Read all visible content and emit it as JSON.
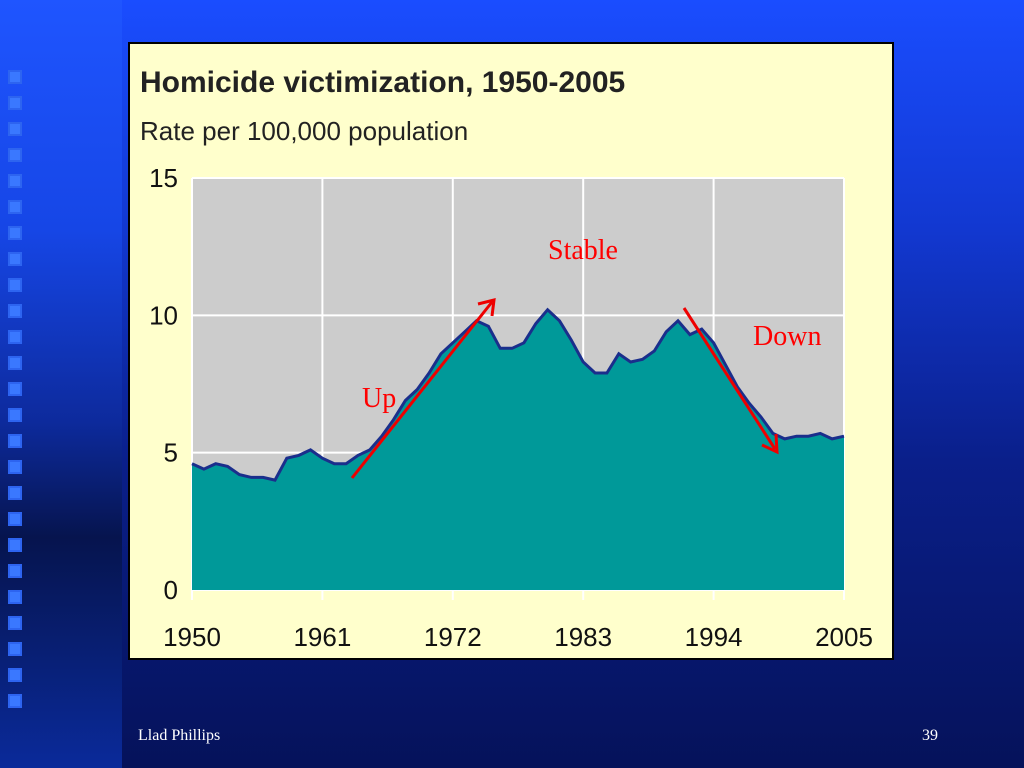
{
  "slide": {
    "author": "Llad Phillips",
    "page_number": "39",
    "background_color": "#1238d0"
  },
  "chart_data": {
    "type": "area",
    "title": "Homicide victimization, 1950-2005",
    "subtitle": "Rate per 100,000 population",
    "x_ticks": [
      "1950",
      "1961",
      "1972",
      "1983",
      "1994",
      "2005"
    ],
    "y_ticks": [
      "0",
      "5",
      "10",
      "15"
    ],
    "xlim": [
      1950,
      2005
    ],
    "ylim": [
      0,
      15
    ],
    "grid": true,
    "fill_color": "#009999",
    "line_color": "#1a2e8c",
    "plot_background": "#cccccc",
    "x": [
      1950,
      1951,
      1952,
      1953,
      1954,
      1955,
      1956,
      1957,
      1958,
      1959,
      1960,
      1961,
      1962,
      1963,
      1964,
      1965,
      1966,
      1967,
      1968,
      1969,
      1970,
      1971,
      1972,
      1973,
      1974,
      1975,
      1976,
      1977,
      1978,
      1979,
      1980,
      1981,
      1982,
      1983,
      1984,
      1985,
      1986,
      1987,
      1988,
      1989,
      1990,
      1991,
      1992,
      1993,
      1994,
      1995,
      1996,
      1997,
      1998,
      1999,
      2000,
      2001,
      2002,
      2003,
      2004,
      2005
    ],
    "values": [
      4.6,
      4.4,
      4.6,
      4.5,
      4.2,
      4.1,
      4.1,
      4.0,
      4.8,
      4.9,
      5.1,
      4.8,
      4.6,
      4.6,
      4.9,
      5.1,
      5.6,
      6.2,
      6.9,
      7.3,
      7.9,
      8.6,
      9.0,
      9.4,
      9.8,
      9.6,
      8.8,
      8.8,
      9.0,
      9.7,
      10.2,
      9.8,
      9.1,
      8.3,
      7.9,
      7.9,
      8.6,
      8.3,
      8.4,
      8.7,
      9.4,
      9.8,
      9.3,
      9.5,
      9.0,
      8.2,
      7.4,
      6.8,
      6.3,
      5.7,
      5.5,
      5.6,
      5.6,
      5.7,
      5.5,
      5.6
    ],
    "annotations": [
      {
        "text": "Up",
        "color": "#ff0000"
      },
      {
        "text": "Stable",
        "color": "#ff0000"
      },
      {
        "text": "Down",
        "color": "#ff0000"
      }
    ]
  }
}
